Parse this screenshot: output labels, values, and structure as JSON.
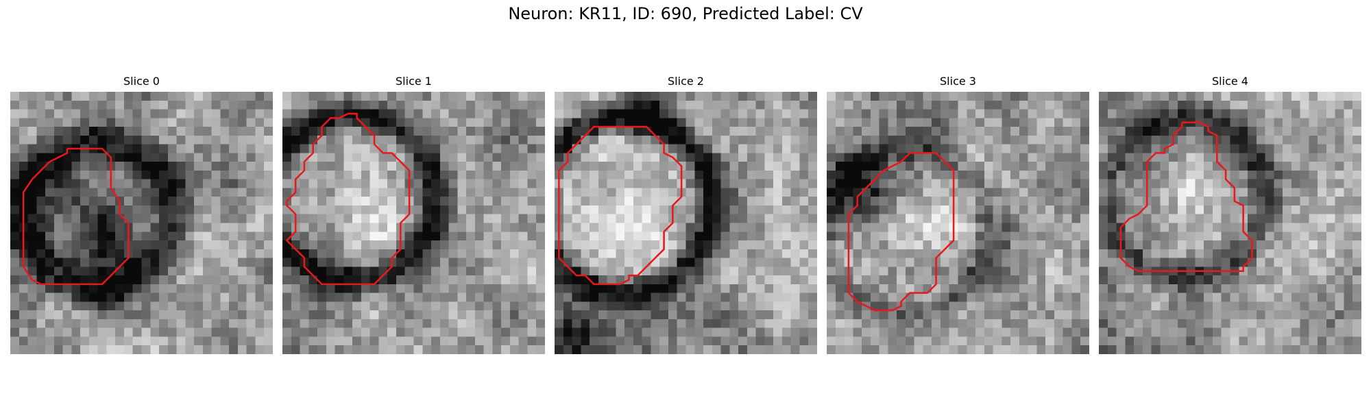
{
  "figure": {
    "title": "Neuron: KR11, ID: 690, Predicted Label: CV"
  },
  "colors": {
    "contour": "#e8191c",
    "background": "#ffffff"
  },
  "panels": [
    {
      "title": "Slice 0",
      "image": "grayscale microscopy patch, dark ring around a mottled dark center",
      "contour": [
        [
          6.5,
          6.5
        ],
        [
          6.5,
          7
        ],
        [
          5.5,
          7.5
        ],
        [
          4.5,
          8
        ],
        [
          3.5,
          9
        ],
        [
          2.5,
          10
        ],
        [
          1.5,
          11.5
        ],
        [
          1.5,
          20
        ],
        [
          2.5,
          21.5
        ],
        [
          3.5,
          22
        ],
        [
          4.5,
          22
        ],
        [
          6.5,
          22
        ],
        [
          8.5,
          22
        ],
        [
          10.5,
          22
        ],
        [
          11.5,
          21
        ],
        [
          12.5,
          20
        ],
        [
          13.5,
          19
        ],
        [
          13.5,
          17
        ],
        [
          13.5,
          15
        ],
        [
          12.5,
          14
        ],
        [
          12.5,
          12.5
        ],
        [
          11.5,
          11
        ],
        [
          11.5,
          9
        ],
        [
          11.5,
          7.5
        ],
        [
          10.5,
          6.5
        ],
        [
          8.5,
          6.5
        ],
        [
          6.5,
          6.5
        ]
      ]
    },
    {
      "title": "Slice 1",
      "image": "grayscale microscopy patch, bright round cell body with dark rim",
      "contour": [
        [
          7.5,
          2.5
        ],
        [
          6.5,
          3
        ],
        [
          5.5,
          3
        ],
        [
          4.5,
          4
        ],
        [
          4.5,
          5
        ],
        [
          3.5,
          6
        ],
        [
          3.5,
          7
        ],
        [
          2.5,
          8
        ],
        [
          2.5,
          9
        ],
        [
          1.5,
          10
        ],
        [
          1.5,
          11.5
        ],
        [
          0.5,
          12.5
        ],
        [
          0.5,
          13
        ],
        [
          1.5,
          14
        ],
        [
          1.5,
          16
        ],
        [
          0.5,
          17
        ],
        [
          1.5,
          18
        ],
        [
          2.5,
          19
        ],
        [
          2.5,
          20
        ],
        [
          3.5,
          21
        ],
        [
          4.5,
          22
        ],
        [
          5.5,
          22
        ],
        [
          7.5,
          22
        ],
        [
          9.5,
          22
        ],
        [
          10.5,
          22
        ],
        [
          11.5,
          21
        ],
        [
          12.5,
          20
        ],
        [
          12.5,
          19
        ],
        [
          13.5,
          18
        ],
        [
          13.5,
          15
        ],
        [
          14.5,
          14
        ],
        [
          14.5,
          9
        ],
        [
          13.5,
          8
        ],
        [
          12.5,
          7
        ],
        [
          11.5,
          7
        ],
        [
          10.5,
          6
        ],
        [
          10.5,
          5
        ],
        [
          9.5,
          4
        ],
        [
          8.5,
          3
        ],
        [
          8.5,
          2.5
        ],
        [
          7.5,
          2.5
        ]
      ]
    },
    {
      "title": "Slice 2",
      "image": "grayscale microscopy patch, large bright cell body with dark membrane",
      "contour": [
        [
          5.5,
          4
        ],
        [
          6.5,
          4
        ],
        [
          10.5,
          4
        ],
        [
          11.5,
          5
        ],
        [
          12.5,
          6
        ],
        [
          12.5,
          7
        ],
        [
          13.5,
          7.5
        ],
        [
          14.5,
          8.5
        ],
        [
          14.5,
          12
        ],
        [
          13.5,
          13
        ],
        [
          13.5,
          15
        ],
        [
          12.5,
          16
        ],
        [
          12.5,
          18
        ],
        [
          11.5,
          19
        ],
        [
          10.5,
          20
        ],
        [
          9.5,
          21
        ],
        [
          8.5,
          21
        ],
        [
          8.5,
          21.5
        ],
        [
          7.5,
          22
        ],
        [
          4.5,
          22
        ],
        [
          3.5,
          21
        ],
        [
          2.5,
          21
        ],
        [
          1.5,
          20
        ],
        [
          0.5,
          19
        ],
        [
          0.5,
          18
        ],
        [
          0.5,
          11
        ],
        [
          0.5,
          9
        ],
        [
          1.5,
          8
        ],
        [
          1.5,
          7
        ],
        [
          2.5,
          6
        ],
        [
          3.5,
          5
        ],
        [
          4.5,
          4
        ],
        [
          5.5,
          4
        ]
      ]
    },
    {
      "title": "Slice 3",
      "image": "grayscale microscopy patch, bright cell body offset to lower right, dark crescent at left",
      "contour": [
        [
          9.5,
          7
        ],
        [
          10.5,
          7
        ],
        [
          12.5,
          7
        ],
        [
          13.5,
          8
        ],
        [
          14.5,
          9
        ],
        [
          14.5,
          11
        ],
        [
          14.5,
          17
        ],
        [
          13.5,
          18
        ],
        [
          12.5,
          19
        ],
        [
          12.5,
          22
        ],
        [
          11.5,
          23
        ],
        [
          10.5,
          23
        ],
        [
          9.5,
          23
        ],
        [
          8.5,
          24
        ],
        [
          8.5,
          24.5
        ],
        [
          7.5,
          25
        ],
        [
          6.5,
          25
        ],
        [
          5.5,
          25
        ],
        [
          4.5,
          24.5
        ],
        [
          3.5,
          24
        ],
        [
          2.5,
          23
        ],
        [
          2.5,
          21
        ],
        [
          2.5,
          14
        ],
        [
          3.5,
          13
        ],
        [
          3.5,
          12
        ],
        [
          4.5,
          11
        ],
        [
          5.5,
          10
        ],
        [
          6.5,
          9
        ],
        [
          7.5,
          8.5
        ],
        [
          8.5,
          8
        ],
        [
          9.5,
          7
        ]
      ]
    },
    {
      "title": "Slice 4",
      "image": "grayscale microscopy patch, faint cell outline with noisy texture",
      "contour": [
        [
          9.5,
          3.5
        ],
        [
          10.5,
          3.5
        ],
        [
          11.5,
          3.5
        ],
        [
          12.5,
          4
        ],
        [
          12.5,
          4.5
        ],
        [
          13.5,
          5
        ],
        [
          13.5,
          8
        ],
        [
          14.5,
          9
        ],
        [
          14.5,
          10
        ],
        [
          15.5,
          11
        ],
        [
          15.5,
          12
        ],
        [
          15.5,
          12.5
        ],
        [
          16.5,
          13
        ],
        [
          16.5,
          16
        ],
        [
          17.5,
          17
        ],
        [
          17.5,
          19
        ],
        [
          16.5,
          20
        ],
        [
          16.5,
          20.5
        ],
        [
          11.5,
          20.5
        ],
        [
          4.5,
          20.5
        ],
        [
          3.5,
          20
        ],
        [
          2.5,
          19
        ],
        [
          2.5,
          18
        ],
        [
          2.5,
          15.5
        ],
        [
          3.5,
          14.5
        ],
        [
          4.5,
          14
        ],
        [
          5.5,
          13
        ],
        [
          5.5,
          11
        ],
        [
          5.5,
          8
        ],
        [
          6.5,
          7
        ],
        [
          7.5,
          7
        ],
        [
          7.5,
          6.5
        ],
        [
          8.5,
          6
        ],
        [
          8.5,
          5
        ],
        [
          9.5,
          4
        ],
        [
          9.5,
          3.5
        ]
      ]
    }
  ]
}
